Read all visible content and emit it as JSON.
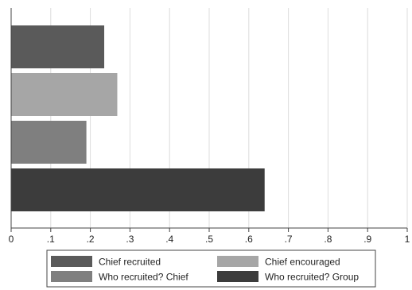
{
  "chart_data": {
    "type": "bar",
    "orientation": "horizontal",
    "series": [
      {
        "name": "Chief recruited",
        "value": 0.235,
        "color": "#5a5a5a"
      },
      {
        "name": "Chief encouraged",
        "value": 0.268,
        "color": "#a6a6a6"
      },
      {
        "name": "Who recruited? Chief",
        "value": 0.19,
        "color": "#7f7f7f"
      },
      {
        "name": "Who recruited? Group",
        "value": 0.64,
        "color": "#3c3c3c"
      }
    ],
    "xlim": [
      0,
      1
    ],
    "xticks": [
      0,
      0.1,
      0.2,
      0.3,
      0.4,
      0.5,
      0.6,
      0.7,
      0.8,
      0.9,
      1
    ],
    "xtick_labels": [
      "0",
      ".1",
      ".2",
      ".3",
      ".4",
      ".5",
      ".6",
      ".7",
      ".8",
      ".9",
      "1"
    ],
    "grid": true,
    "legend_position": "bottom",
    "title": "",
    "xlabel": "",
    "ylabel": ""
  }
}
